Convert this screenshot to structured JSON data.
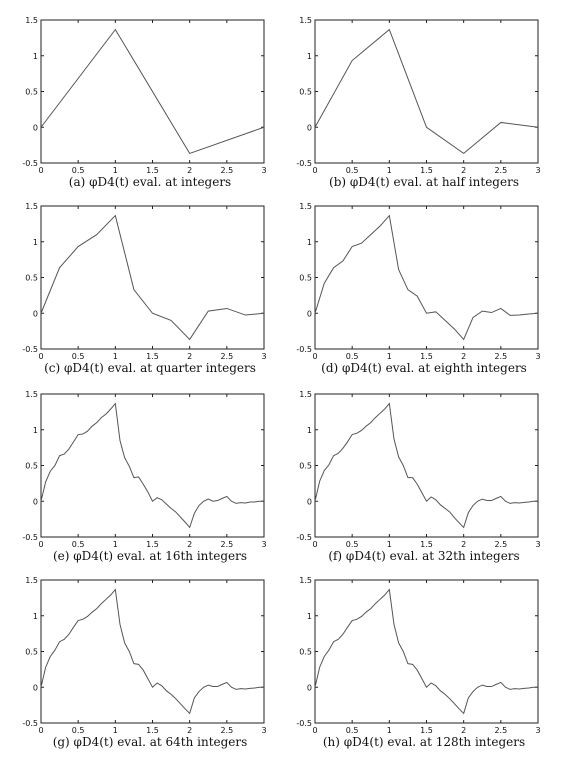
{
  "chart_data": [
    {
      "type": "line",
      "caption": "(a) φD4(t) eval. at integers",
      "xlim": [
        0,
        3
      ],
      "ylim": [
        -0.5,
        1.5
      ],
      "xticks": [
        "0",
        "0.5",
        "1",
        "1.5",
        "2",
        "2.5",
        "3"
      ],
      "yticks": [
        "-0.5",
        "0",
        "0.5",
        "1",
        "1.5"
      ],
      "x": [
        0,
        1,
        2,
        3
      ],
      "y": [
        0,
        1.366,
        -0.366,
        0
      ]
    },
    {
      "type": "line",
      "caption": "(b) φD4(t) eval. at half integers",
      "xlim": [
        0,
        3
      ],
      "ylim": [
        -0.5,
        1.5
      ],
      "xticks": [
        "0",
        "0.5",
        "1",
        "1.5",
        "2",
        "2.5",
        "3"
      ],
      "yticks": [
        "-0.5",
        "0",
        "0.5",
        "1",
        "1.5"
      ],
      "x": [
        0,
        0.5,
        1,
        1.5,
        2,
        2.5,
        3
      ],
      "y": [
        0,
        0.933,
        1.366,
        0,
        -0.366,
        0.067,
        0
      ]
    },
    {
      "type": "line",
      "caption": "(c) φD4(t) eval. at quarter integers",
      "xlim": [
        0,
        3
      ],
      "ylim": [
        -0.5,
        1.5
      ],
      "xticks": [
        "0",
        "0.5",
        "1",
        "1.5",
        "2",
        "2.5",
        "3"
      ],
      "yticks": [
        "-0.5",
        "0",
        "0.5",
        "1",
        "1.5"
      ],
      "x": [
        0,
        0.25,
        0.5,
        0.75,
        1,
        1.25,
        1.5,
        1.75,
        2,
        2.25,
        2.5,
        2.75,
        3
      ],
      "y": [
        0,
        0.637,
        0.933,
        1.1,
        1.366,
        0.33,
        0,
        -0.1,
        -0.366,
        0.03,
        0.067,
        -0.025,
        0
      ]
    },
    {
      "type": "line",
      "caption": "(d) φD4(t) eval. at eighth integers",
      "xlim": [
        0,
        3
      ],
      "ylim": [
        -0.5,
        1.5
      ],
      "xticks": [
        "0",
        "0.5",
        "1",
        "1.5",
        "2",
        "2.5",
        "3"
      ],
      "yticks": [
        "-0.5",
        "0",
        "0.5",
        "1",
        "1.5"
      ],
      "x": [
        0,
        0.125,
        0.25,
        0.375,
        0.5,
        0.625,
        0.75,
        0.875,
        1,
        1.125,
        1.25,
        1.375,
        1.5,
        1.625,
        1.75,
        1.875,
        2,
        2.125,
        2.25,
        2.375,
        2.5,
        2.625,
        2.75,
        2.875,
        3
      ],
      "y": [
        0,
        0.42,
        0.637,
        0.73,
        0.933,
        0.98,
        1.1,
        1.22,
        1.366,
        0.61,
        0.33,
        0.24,
        0,
        0.02,
        -0.1,
        -0.22,
        -0.366,
        -0.06,
        0.03,
        0.01,
        0.067,
        -0.03,
        -0.025,
        -0.01,
        0
      ]
    },
    {
      "type": "line",
      "caption": "(e) φD4(t) eval. at 16th integers",
      "xlim": [
        0,
        3
      ],
      "ylim": [
        -0.5,
        1.5
      ],
      "xticks": [
        "0",
        "0.5",
        "1",
        "1.5",
        "2",
        "2.5",
        "3"
      ],
      "yticks": [
        "-0.5",
        "0",
        "0.5",
        "1",
        "1.5"
      ],
      "x": [
        0,
        0.0625,
        0.125,
        0.1875,
        0.25,
        0.3125,
        0.375,
        0.4375,
        0.5,
        0.5625,
        0.625,
        0.6875,
        0.75,
        0.8125,
        0.875,
        0.9375,
        1,
        1.0625,
        1.125,
        1.1875,
        1.25,
        1.3125,
        1.375,
        1.4375,
        1.5,
        1.5625,
        1.625,
        1.6875,
        1.75,
        1.8125,
        1.875,
        1.9375,
        2,
        2.0625,
        2.125,
        2.1875,
        2.25,
        2.3125,
        2.375,
        2.4375,
        2.5,
        2.5625,
        2.625,
        2.6875,
        2.75,
        2.8125,
        2.875,
        2.9375,
        3
      ],
      "y": [
        0,
        0.27,
        0.42,
        0.5,
        0.637,
        0.66,
        0.73,
        0.83,
        0.933,
        0.94,
        0.98,
        1.05,
        1.1,
        1.17,
        1.22,
        1.29,
        1.366,
        0.85,
        0.61,
        0.49,
        0.33,
        0.34,
        0.24,
        0.13,
        0,
        0.05,
        0.02,
        -0.04,
        -0.1,
        -0.15,
        -0.22,
        -0.29,
        -0.366,
        -0.17,
        -0.06,
        0.0,
        0.03,
        0.0,
        0.01,
        0.04,
        0.067,
        0.0,
        -0.03,
        -0.02,
        -0.025,
        -0.01,
        -0.01,
        0.0,
        0
      ]
    },
    {
      "type": "line",
      "caption": "(f) φD4(t) eval. at 32th integers",
      "xlim": [
        0,
        3
      ],
      "ylim": [
        -0.5,
        1.5
      ],
      "xticks": [
        "0",
        "0.5",
        "1",
        "1.5",
        "2",
        "2.5",
        "3"
      ],
      "yticks": [
        "-0.5",
        "0",
        "0.5",
        "1",
        "1.5"
      ],
      "x": [
        0,
        0.0625,
        0.125,
        0.1875,
        0.25,
        0.3125,
        0.375,
        0.4375,
        0.5,
        0.5625,
        0.625,
        0.6875,
        0.75,
        0.8125,
        0.875,
        0.9375,
        1,
        1.0625,
        1.125,
        1.1875,
        1.25,
        1.3125,
        1.375,
        1.4375,
        1.5,
        1.5625,
        1.625,
        1.6875,
        1.75,
        1.8125,
        1.875,
        1.9375,
        2,
        2.0625,
        2.125,
        2.1875,
        2.25,
        2.3125,
        2.375,
        2.4375,
        2.5,
        2.5625,
        2.625,
        2.6875,
        2.75,
        2.8125,
        2.875,
        2.9375,
        3
      ],
      "y": [
        0,
        0.28,
        0.43,
        0.51,
        0.637,
        0.67,
        0.74,
        0.83,
        0.933,
        0.95,
        0.99,
        1.05,
        1.1,
        1.17,
        1.23,
        1.29,
        1.366,
        0.87,
        0.62,
        0.5,
        0.33,
        0.33,
        0.24,
        0.12,
        0,
        0.06,
        0.02,
        -0.05,
        -0.1,
        -0.15,
        -0.23,
        -0.3,
        -0.366,
        -0.16,
        -0.06,
        0.0,
        0.03,
        0.01,
        0.01,
        0.04,
        0.067,
        0.0,
        -0.03,
        -0.02,
        -0.025,
        -0.015,
        -0.01,
        0.0,
        0
      ]
    },
    {
      "type": "line",
      "caption": "(g) φD4(t) eval. at 64th integers",
      "xlim": [
        0,
        3
      ],
      "ylim": [
        -0.5,
        1.5
      ],
      "xticks": [
        "0",
        "0.5",
        "1",
        "1.5",
        "2",
        "2.5",
        "3"
      ],
      "yticks": [
        "-0.5",
        "0",
        "0.5",
        "1",
        "1.5"
      ],
      "x": [
        0,
        0.0625,
        0.125,
        0.1875,
        0.25,
        0.3125,
        0.375,
        0.4375,
        0.5,
        0.5625,
        0.625,
        0.6875,
        0.75,
        0.8125,
        0.875,
        0.9375,
        1,
        1.0625,
        1.125,
        1.1875,
        1.25,
        1.3125,
        1.375,
        1.4375,
        1.5,
        1.5625,
        1.625,
        1.6875,
        1.75,
        1.8125,
        1.875,
        1.9375,
        2,
        2.0625,
        2.125,
        2.1875,
        2.25,
        2.3125,
        2.375,
        2.4375,
        2.5,
        2.5625,
        2.625,
        2.6875,
        2.75,
        2.8125,
        2.875,
        2.9375,
        3
      ],
      "y": [
        0,
        0.28,
        0.43,
        0.52,
        0.637,
        0.67,
        0.74,
        0.84,
        0.933,
        0.95,
        0.99,
        1.05,
        1.1,
        1.17,
        1.23,
        1.29,
        1.366,
        0.88,
        0.62,
        0.5,
        0.33,
        0.32,
        0.24,
        0.12,
        0,
        0.06,
        0.02,
        -0.05,
        -0.1,
        -0.16,
        -0.23,
        -0.3,
        -0.366,
        -0.15,
        -0.06,
        0.0,
        0.03,
        0.01,
        0.01,
        0.04,
        0.067,
        0.0,
        -0.03,
        -0.02,
        -0.025,
        -0.015,
        -0.01,
        0.0,
        0
      ]
    },
    {
      "type": "line",
      "caption": "(h) φD4(t) eval. at 128th integers",
      "xlim": [
        0,
        3
      ],
      "ylim": [
        -0.5,
        1.5
      ],
      "xticks": [
        "0",
        "0.5",
        "1",
        "1.5",
        "2",
        "2.5",
        "3"
      ],
      "yticks": [
        "-0.5",
        "0",
        "0.5",
        "1",
        "1.5"
      ],
      "x": [
        0,
        0.0625,
        0.125,
        0.1875,
        0.25,
        0.3125,
        0.375,
        0.4375,
        0.5,
        0.5625,
        0.625,
        0.6875,
        0.75,
        0.8125,
        0.875,
        0.9375,
        1,
        1.0625,
        1.125,
        1.1875,
        1.25,
        1.3125,
        1.375,
        1.4375,
        1.5,
        1.5625,
        1.625,
        1.6875,
        1.75,
        1.8125,
        1.875,
        1.9375,
        2,
        2.0625,
        2.125,
        2.1875,
        2.25,
        2.3125,
        2.375,
        2.4375,
        2.5,
        2.5625,
        2.625,
        2.6875,
        2.75,
        2.8125,
        2.875,
        2.9375,
        3
      ],
      "y": [
        0,
        0.28,
        0.43,
        0.52,
        0.637,
        0.67,
        0.74,
        0.84,
        0.933,
        0.95,
        0.99,
        1.05,
        1.1,
        1.17,
        1.23,
        1.29,
        1.366,
        0.88,
        0.62,
        0.5,
        0.33,
        0.32,
        0.24,
        0.12,
        0,
        0.06,
        0.02,
        -0.05,
        -0.1,
        -0.16,
        -0.23,
        -0.3,
        -0.366,
        -0.15,
        -0.06,
        0.0,
        0.03,
        0.01,
        0.01,
        0.04,
        0.067,
        0.0,
        -0.03,
        -0.02,
        -0.025,
        -0.015,
        -0.01,
        0.0,
        0
      ]
    }
  ]
}
